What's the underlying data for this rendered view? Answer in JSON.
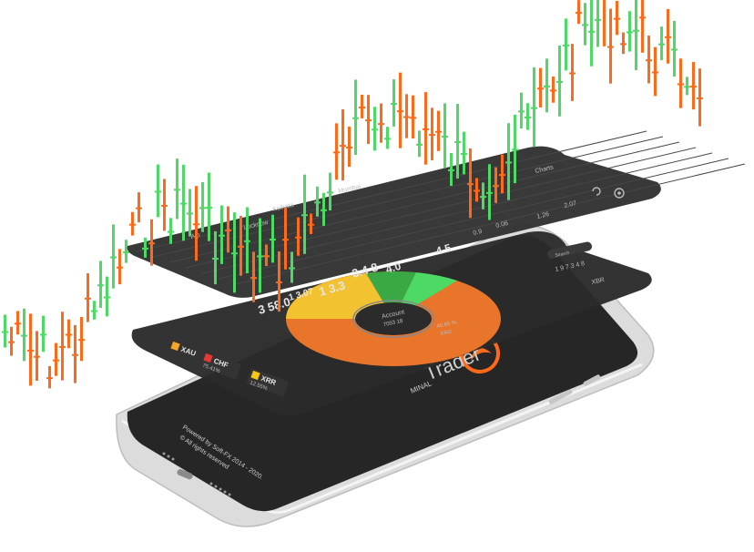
{
  "splash": {
    "app_name": "Trader",
    "subtitle": "MINAL",
    "footer_line1": "Powered by Soft-FX 2014 - 2020.",
    "footer_line2": "© All rights reserved"
  },
  "pie": {
    "center_label": "Account",
    "center_value": "7093 18",
    "slice_label": "46.85 %",
    "slice_sub": "XAU"
  },
  "lower_list": {
    "rows": [
      {
        "symbol": "XAU",
        "value": "",
        "flag_color": "#f5a623"
      },
      {
        "symbol": "CHF",
        "value": "75.41%",
        "flag_color": "#e53935"
      },
      {
        "symbol": "XRR",
        "value": "12.55%",
        "flag_color": "#f5c518"
      }
    ]
  },
  "quotes_layer": {
    "header_tab": "Charts",
    "big_prices": [
      "3.4 8",
      "1 3.3",
      "3 58.0",
      "4.5",
      "4.0",
      "1 3.07"
    ],
    "row_names": [
      "Lucknow",
      "Kolkata",
      "Alp",
      "Mumbai"
    ],
    "small_values": [
      "1.26",
      "0.06",
      "0.9",
      "2.07"
    ]
  },
  "middle_layer": {
    "price_tag": "1 9 7 3 4 8",
    "tab_label": "XBR",
    "search_hint": "Search"
  },
  "colors": {
    "bull": "#4cd964",
    "bear": "#ff6a1a",
    "screen": "#2a2a2a",
    "pie_orange": "#e8752a",
    "pie_yellow": "#f2c230",
    "pie_green": "#4cd964"
  }
}
